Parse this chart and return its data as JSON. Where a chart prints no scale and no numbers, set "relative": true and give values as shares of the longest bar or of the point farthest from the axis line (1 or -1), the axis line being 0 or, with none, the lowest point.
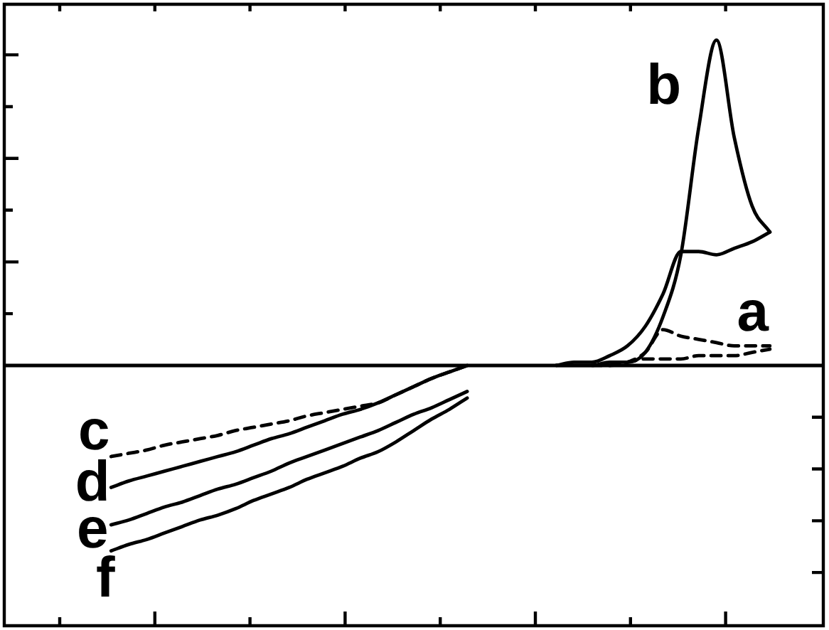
{
  "chart_data": {
    "type": "line",
    "relative": true,
    "marker": "none",
    "categories": [
      null,
      null,
      null,
      null,
      null,
      null,
      null,
      null,
      null,
      null,
      null,
      null,
      null,
      null,
      null,
      null,
      null,
      null,
      null,
      null,
      null,
      null,
      null,
      null,
      null,
      null,
      null,
      null,
      null,
      null,
      null,
      null,
      null,
      null,
      null,
      null,
      null,
      null,
      null,
      null,
      null,
      null,
      null,
      null,
      null,
      null,
      null
    ],
    "series": [
      {
        "name": "a",
        "color": "#000000",
        "line_style": "dashed",
        "values": [
          null,
          null,
          null,
          null,
          null,
          null,
          null,
          null,
          null,
          null,
          null,
          null,
          null,
          null,
          null,
          null,
          null,
          null,
          null,
          null,
          null,
          null,
          null,
          null,
          null,
          null,
          null,
          null,
          null,
          null,
          null,
          null,
          null,
          0,
          0,
          0.01,
          0.04,
          0.11,
          0.09,
          0.08,
          0.07,
          0.06,
          0.06,
          0.06,
          null,
          null,
          null
        ]
      },
      {
        "color": "#000000",
        "line_style": "dashed",
        "values": [
          null,
          null,
          null,
          null,
          null,
          null,
          null,
          null,
          null,
          null,
          null,
          null,
          null,
          null,
          null,
          null,
          null,
          null,
          null,
          null,
          null,
          null,
          null,
          null,
          null,
          null,
          null,
          null,
          null,
          null,
          null,
          null,
          null,
          null,
          0,
          0.01,
          0.02,
          0.02,
          0.02,
          0.03,
          0.03,
          0.03,
          0.04,
          0.05,
          null,
          null,
          null
        ]
      },
      {
        "name": "b",
        "color": "#000000",
        "line_style": "solid",
        "values": [
          null,
          null,
          null,
          null,
          null,
          null,
          null,
          null,
          null,
          null,
          null,
          null,
          null,
          null,
          null,
          null,
          null,
          null,
          null,
          null,
          null,
          null,
          null,
          null,
          null,
          null,
          null,
          null,
          null,
          null,
          null,
          0,
          0,
          0,
          0.01,
          0.01,
          0.04,
          0.15,
          0.34,
          0.73,
          1,
          0.7,
          0.49,
          0.41,
          null,
          null,
          null
        ]
      },
      {
        "color": "#000000",
        "line_style": "solid",
        "values": [
          null,
          null,
          null,
          null,
          null,
          null,
          null,
          null,
          null,
          null,
          null,
          null,
          null,
          null,
          null,
          null,
          null,
          null,
          null,
          null,
          null,
          null,
          null,
          null,
          null,
          null,
          null,
          null,
          null,
          null,
          null,
          0,
          0.01,
          0.01,
          0.03,
          0.06,
          0.12,
          0.22,
          0.35,
          0.35,
          0.34,
          0.36,
          0.38,
          0.41,
          null,
          null,
          null
        ]
      },
      {
        "name": "c",
        "color": "#000000",
        "line_style": "dashed",
        "values": [
          null,
          null,
          null,
          null,
          null,
          null,
          -0.28,
          -0.27,
          -0.26,
          -0.245,
          -0.235,
          -0.225,
          -0.215,
          -0.2,
          -0.19,
          -0.18,
          -0.17,
          -0.155,
          -0.145,
          -0.135,
          -0.125,
          -0.115,
          -0.09,
          -0.065,
          -0.04,
          -0.02,
          0,
          null,
          null,
          null,
          null,
          null,
          null,
          null,
          null,
          null,
          null,
          null,
          null,
          null,
          null,
          null,
          null,
          null,
          null,
          null,
          null
        ]
      },
      {
        "name": "d",
        "color": "#000000",
        "line_style": "solid",
        "values": [
          null,
          null,
          null,
          null,
          null,
          null,
          -0.375,
          -0.355,
          -0.34,
          -0.325,
          -0.31,
          -0.295,
          -0.28,
          -0.265,
          -0.245,
          -0.225,
          -0.21,
          -0.19,
          -0.17,
          -0.15,
          -0.135,
          -0.115,
          -0.09,
          -0.065,
          -0.04,
          -0.02,
          0,
          null,
          null,
          null,
          null,
          null,
          null,
          null,
          null,
          null,
          null,
          null,
          null,
          null,
          null,
          null,
          null,
          null,
          null,
          null,
          null
        ]
      },
      {
        "name": "e",
        "color": "#000000",
        "line_style": "solid",
        "values": [
          null,
          null,
          null,
          null,
          null,
          null,
          -0.49,
          -0.475,
          -0.455,
          -0.435,
          -0.42,
          -0.4,
          -0.38,
          -0.365,
          -0.345,
          -0.325,
          -0.3,
          -0.28,
          -0.26,
          -0.24,
          -0.22,
          -0.2,
          -0.175,
          -0.15,
          -0.13,
          -0.105,
          -0.08,
          null,
          null,
          null,
          null,
          null,
          null,
          null,
          null,
          null,
          null,
          null,
          null,
          null,
          null,
          null,
          null,
          null,
          null,
          null,
          null
        ]
      },
      {
        "name": "f",
        "color": "#000000",
        "line_style": "solid",
        "values": [
          null,
          null,
          null,
          null,
          null,
          null,
          -0.57,
          -0.55,
          -0.535,
          -0.515,
          -0.495,
          -0.475,
          -0.46,
          -0.44,
          -0.415,
          -0.395,
          -0.375,
          -0.35,
          -0.33,
          -0.31,
          -0.285,
          -0.265,
          -0.235,
          -0.2,
          -0.165,
          -0.135,
          -0.1,
          null,
          null,
          null,
          null,
          null,
          null,
          null,
          null,
          null,
          null,
          null,
          null,
          null,
          null,
          null,
          null,
          null,
          null,
          null,
          null
        ]
      }
    ]
  }
}
